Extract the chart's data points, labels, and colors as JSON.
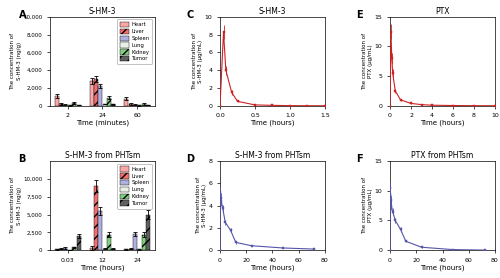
{
  "panel_A": {
    "title": "S-HM-3",
    "xlabel": "Time (minutes)",
    "ylabel": "The concentration of\nS-HM-3 (ng/g)",
    "label": "A",
    "timepoints": [
      2,
      24,
      60
    ],
    "bar_groups": {
      "Heart": [
        1100,
        2800,
        800
      ],
      "Liver": [
        200,
        3000,
        200
      ],
      "Spleen": [
        100,
        2200,
        100
      ],
      "Lung": [
        50,
        200,
        50
      ],
      "Kidney": [
        350,
        900,
        200
      ],
      "Tumor": [
        100,
        150,
        100
      ]
    },
    "errors": {
      "Heart": [
        200,
        300,
        150
      ],
      "Liver": [
        100,
        300,
        80
      ],
      "Spleen": [
        50,
        250,
        50
      ],
      "Lung": [
        20,
        50,
        20
      ],
      "Kidney": [
        100,
        150,
        60
      ],
      "Tumor": [
        40,
        50,
        40
      ]
    },
    "ylim": [
      0,
      10000
    ],
    "yticks": [
      0,
      2000,
      4000,
      6000,
      8000,
      10000
    ],
    "xtick_labels": [
      "2",
      "24",
      "60"
    ]
  },
  "panel_B": {
    "title": "S-HM-3 from PHTsm",
    "xlabel": "Time (hours)",
    "ylabel": "The concentration of\nS-HM-3 (ng/g)",
    "label": "B",
    "timepoints": [
      0.03,
      12,
      24
    ],
    "bar_groups": {
      "Heart": [
        100,
        300,
        100
      ],
      "Liver": [
        200,
        9000,
        200
      ],
      "Spleen": [
        300,
        5500,
        2300
      ],
      "Lung": [
        50,
        200,
        100
      ],
      "Kidney": [
        400,
        2200,
        2200
      ],
      "Tumor": [
        2000,
        200,
        5000
      ]
    },
    "errors": {
      "Heart": [
        50,
        300,
        50
      ],
      "Liver": [
        100,
        800,
        100
      ],
      "Spleen": [
        100,
        500,
        300
      ],
      "Lung": [
        20,
        50,
        30
      ],
      "Kidney": [
        100,
        400,
        400
      ],
      "Tumor": [
        300,
        80,
        600
      ]
    },
    "ylim": [
      0,
      12500
    ],
    "yticks": [
      0,
      2500,
      5000,
      7500,
      10000
    ],
    "xtick_labels": [
      "0.03",
      "12",
      "24"
    ]
  },
  "panel_C": {
    "title": "S-HM-3",
    "xlabel": "Time (hours)",
    "ylabel": "The concentration of\nS-HM-3 (μg/mL)",
    "label": "C",
    "x": [
      0,
      0.05,
      0.083,
      0.167,
      0.25,
      0.5,
      0.75,
      1.0,
      1.25,
      1.5
    ],
    "y": [
      0,
      8.3,
      4.0,
      1.5,
      0.5,
      0.1,
      0.05,
      0.02,
      0.01,
      0.005
    ],
    "yerr": [
      0,
      0.8,
      0.5,
      0.3,
      0.1,
      0.02,
      0.01,
      0.005,
      0.003,
      0.002
    ],
    "xlim": [
      0,
      1.5
    ],
    "ylim": [
      0,
      10
    ],
    "yticks": [
      0,
      2,
      4,
      6,
      8,
      10
    ],
    "xticks": [
      0.0,
      0.5,
      1.0,
      1.5
    ],
    "line_color": "#cc2222",
    "marker_color": "#cc2222"
  },
  "panel_D": {
    "title": "S-HM-3 from PHTsm",
    "xlabel": "Time (hours)",
    "ylabel": "The concentration of\nS-HM-3 (μg/mL)",
    "label": "D",
    "x": [
      0,
      0.083,
      0.25,
      0.5,
      1,
      2,
      4,
      8,
      12,
      24,
      48,
      72
    ],
    "y": [
      0,
      5.2,
      5.0,
      4.7,
      4.4,
      3.8,
      2.5,
      1.8,
      0.7,
      0.4,
      0.2,
      0.1
    ],
    "yerr": [
      0,
      0.5,
      0.4,
      0.4,
      0.4,
      0.3,
      0.25,
      0.2,
      0.1,
      0.05,
      0.03,
      0.02
    ],
    "xlim": [
      0,
      80
    ],
    "ylim": [
      0,
      8
    ],
    "yticks": [
      0,
      2,
      4,
      6,
      8
    ],
    "xticks": [
      0,
      20,
      40,
      60,
      80
    ],
    "line_color": "#5555aa",
    "marker_color": "#5555aa"
  },
  "panel_E": {
    "title": "PTX",
    "xlabel": "Time (hours)",
    "ylabel": "The concentration of\nPTX (μg/mL)",
    "label": "E",
    "x": [
      0,
      0.083,
      0.167,
      0.25,
      0.5,
      1,
      2,
      3,
      4,
      6,
      8,
      10
    ],
    "y": [
      0,
      12.5,
      8.0,
      5.5,
      2.5,
      1.0,
      0.4,
      0.2,
      0.1,
      0.05,
      0.02,
      0.01
    ],
    "yerr": [
      0,
      1.2,
      0.9,
      0.7,
      0.4,
      0.15,
      0.07,
      0.04,
      0.02,
      0.01,
      0.005,
      0.003
    ],
    "xlim": [
      0,
      10
    ],
    "ylim": [
      0,
      15
    ],
    "yticks": [
      0,
      5,
      10,
      15
    ],
    "xticks": [
      0,
      2,
      4,
      6,
      8,
      10
    ],
    "line_color": "#cc2222",
    "marker_color": "#cc2222"
  },
  "panel_F": {
    "title": "PTX from PHTsm",
    "xlabel": "Time (hours)",
    "ylabel": "The concentration of\nPTX (μg/mL)",
    "label": "F",
    "x": [
      0,
      0.083,
      0.25,
      0.5,
      1,
      2,
      4,
      8,
      12,
      24,
      48,
      72
    ],
    "y": [
      0,
      10.5,
      9.5,
      8.5,
      7.5,
      6.5,
      5.0,
      3.5,
      1.5,
      0.5,
      0.1,
      0.02
    ],
    "yerr": [
      0,
      1.0,
      0.9,
      0.8,
      0.7,
      0.6,
      0.5,
      0.4,
      0.2,
      0.1,
      0.02,
      0.005
    ],
    "xlim": [
      0,
      80
    ],
    "ylim": [
      0,
      15
    ],
    "yticks": [
      0,
      5,
      10,
      15
    ],
    "xticks": [
      0,
      20,
      40,
      60,
      80
    ],
    "line_color": "#5555aa",
    "marker_color": "#5555aa"
  },
  "bar_colors": {
    "Heart": "#f9a8a8",
    "Liver": "#f07070",
    "Spleen": "#b0b0e0",
    "Lung": "#e8f0e8",
    "Kidney": "#80d080",
    "Tumor": "#606060"
  },
  "bar_hatch": {
    "Heart": "",
    "Liver": "///",
    "Spleen": "",
    "Lung": "",
    "Kidney": "///",
    "Tumor": "///"
  },
  "bg_color": "#ffffff"
}
